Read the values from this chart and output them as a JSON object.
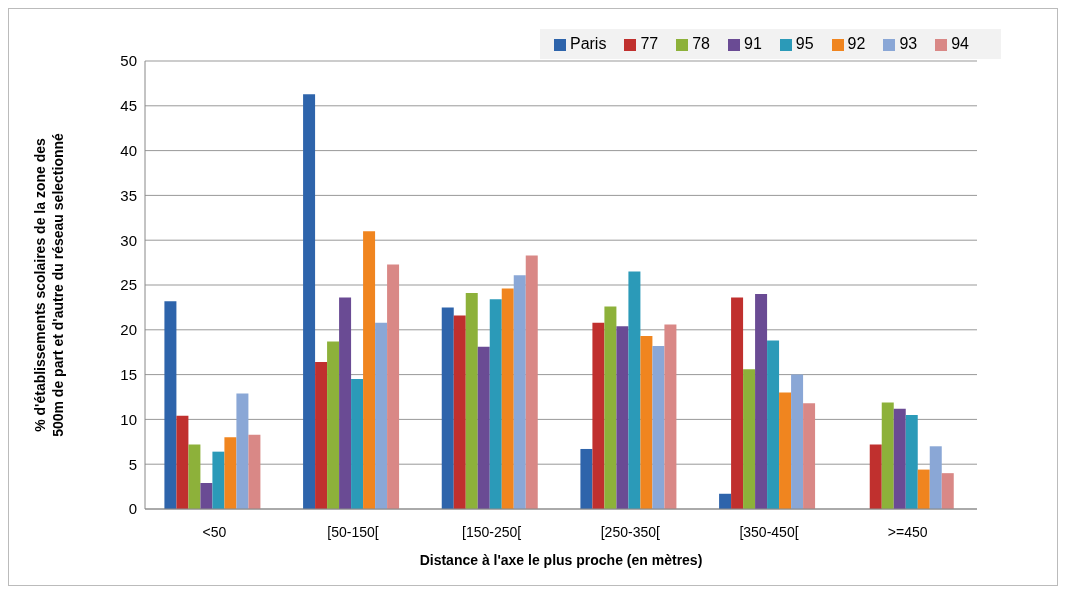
{
  "chart_data": {
    "type": "bar",
    "xlabel": "Distance à l'axe le plus proche (en mètres)",
    "ylabel": "% d'établissements  scolaires de la zone des 500m de part et d'autre du réseau selectionné",
    "categories": [
      "<50",
      "[50-150[",
      "[150-250[",
      "[250-350[",
      "[350-450[",
      ">=450"
    ],
    "series": [
      {
        "name": "Paris",
        "color": "#2e64ab",
        "values": [
          23.2,
          46.3,
          22.5,
          6.7,
          1.7,
          0
        ]
      },
      {
        "name": "77",
        "color": "#c0302e",
        "values": [
          10.4,
          16.4,
          21.6,
          20.8,
          23.6,
          7.2
        ]
      },
      {
        "name": "78",
        "color": "#8db13a",
        "values": [
          7.2,
          18.7,
          24.1,
          22.6,
          15.6,
          11.9
        ]
      },
      {
        "name": "91",
        "color": "#6a4b94",
        "values": [
          2.9,
          23.6,
          18.1,
          20.4,
          24.0,
          11.2
        ]
      },
      {
        "name": "95",
        "color": "#2b9ab8",
        "values": [
          6.4,
          14.5,
          23.4,
          26.5,
          18.8,
          10.5
        ]
      },
      {
        "name": "92",
        "color": "#f0851f",
        "values": [
          8.0,
          31.0,
          24.6,
          19.3,
          13.0,
          4.4
        ]
      },
      {
        "name": "93",
        "color": "#8aa7d6",
        "values": [
          12.9,
          20.8,
          26.1,
          18.2,
          15.0,
          7.0
        ]
      },
      {
        "name": "94",
        "color": "#d98886",
        "values": [
          8.3,
          27.3,
          28.3,
          20.6,
          11.8,
          4.0
        ]
      }
    ],
    "ylim": [
      0,
      50
    ],
    "yticks": [
      0,
      5,
      10,
      15,
      20,
      25,
      30,
      35,
      40,
      45,
      50
    ],
    "grid": "y",
    "legend": "top right"
  }
}
